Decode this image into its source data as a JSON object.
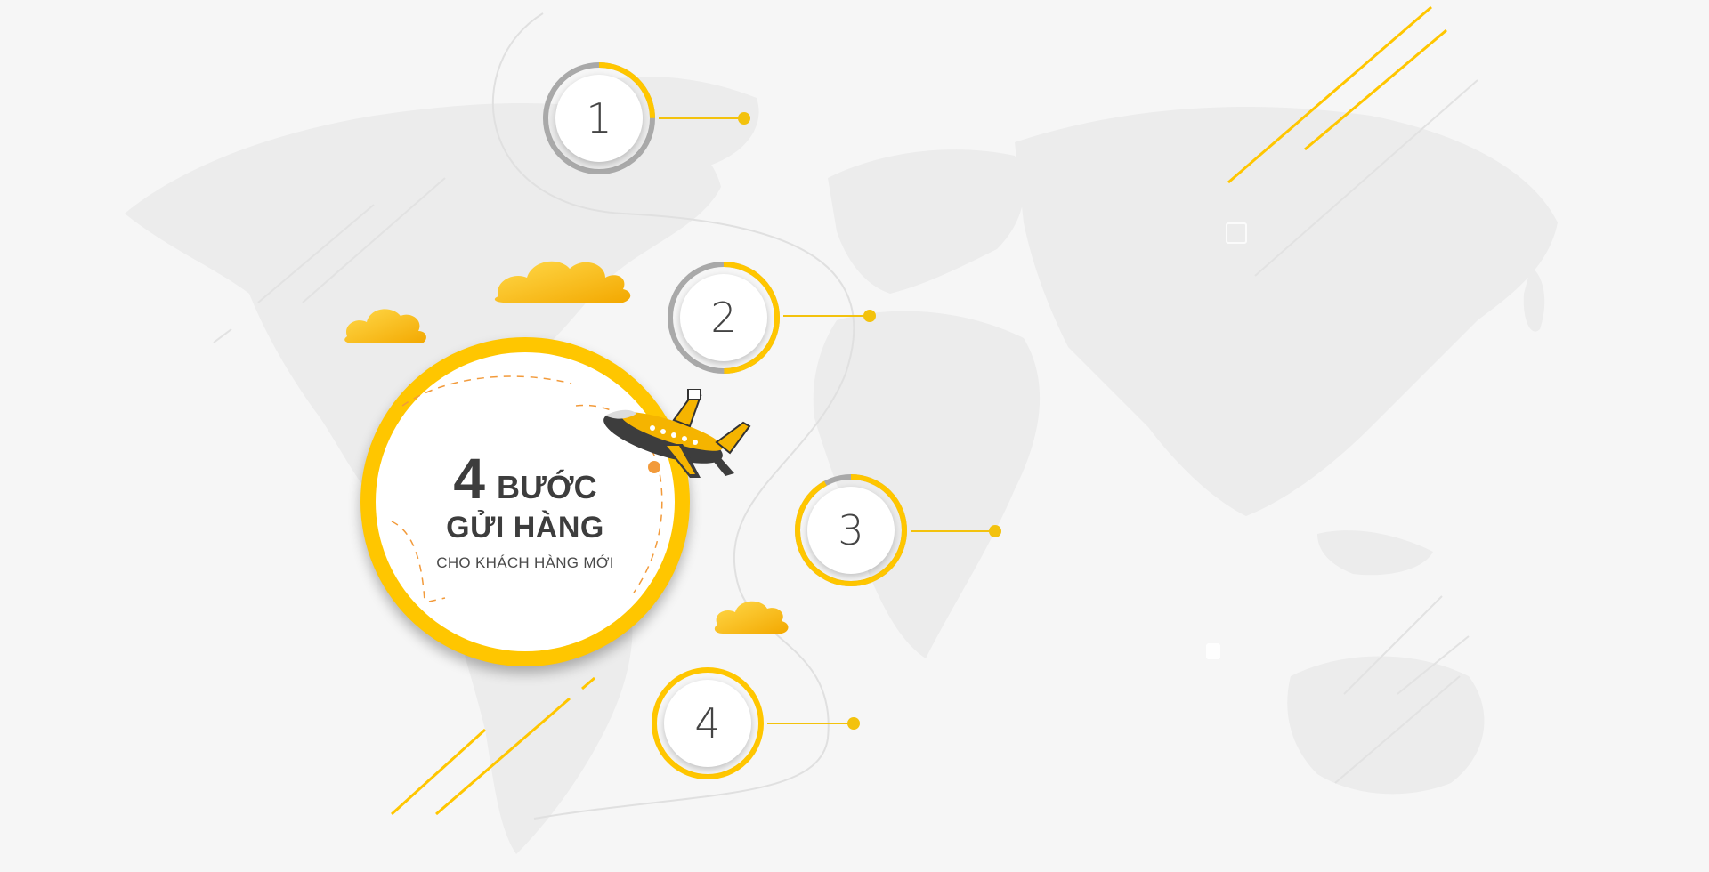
{
  "hero": {
    "number": "4",
    "word": "BƯỚC",
    "title_line2": "GỬI HÀNG",
    "subtitle": "CHO KHÁCH HÀNG MỚI"
  },
  "steps": [
    {
      "label": "1",
      "progress": 0.25
    },
    {
      "label": "2",
      "progress": 0.5
    },
    {
      "label": "3",
      "progress": 0.92
    },
    {
      "label": "4",
      "progress": 1.0
    }
  ],
  "colors": {
    "accent": "#ffc600",
    "line": "#f3c20d",
    "ring_gray": "#a9a9a9",
    "map": "#ebebeb",
    "background": "#f6f6f6"
  },
  "icons": [
    "world-map-icon",
    "airplane-icon",
    "cloud-icon"
  ]
}
